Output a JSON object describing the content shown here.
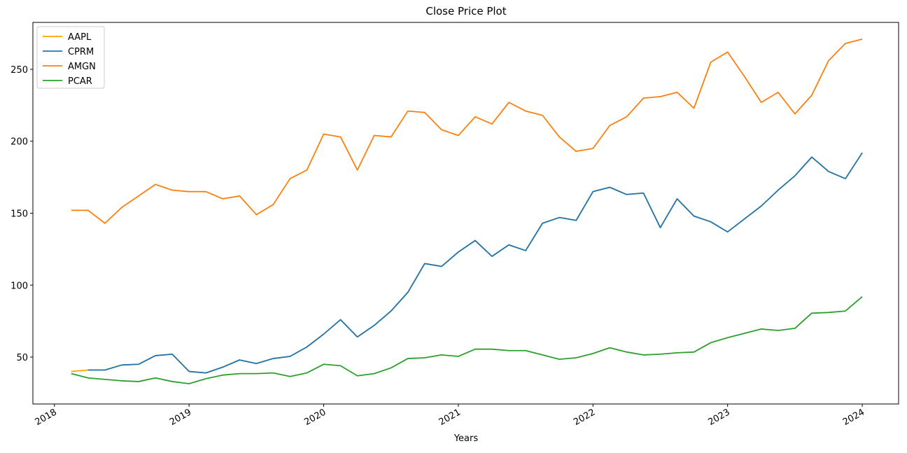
{
  "chart_data": {
    "type": "line",
    "title": "Close Price Plot",
    "x_label": "Years",
    "x": [
      2018.125,
      2018.25,
      2018.375,
      2018.5,
      2018.625,
      2018.75,
      2018.875,
      2019.0,
      2019.125,
      2019.25,
      2019.375,
      2019.5,
      2019.625,
      2019.75,
      2019.875,
      2020.0,
      2020.125,
      2020.25,
      2020.375,
      2020.5,
      2020.625,
      2020.75,
      2020.875,
      2021.0,
      2021.125,
      2021.25,
      2021.375,
      2021.5,
      2021.625,
      2021.75,
      2021.875,
      2022.0,
      2022.125,
      2022.25,
      2022.375,
      2022.5,
      2022.625,
      2022.75,
      2022.875,
      2023.0,
      2023.125,
      2023.25,
      2023.375,
      2023.5,
      2023.625,
      2023.75,
      2023.875,
      2024.0
    ],
    "series": [
      {
        "name": "AAPL",
        "color": "#ffa500",
        "values": [
          40,
          41,
          41,
          44.5,
          45,
          51,
          52,
          40,
          39,
          43,
          48,
          45.5,
          49,
          50.5,
          57,
          66,
          76,
          64,
          72,
          82,
          95,
          115,
          113,
          123,
          131,
          120,
          128,
          124,
          143,
          147,
          145,
          165,
          168,
          163,
          164,
          140,
          160,
          148,
          144,
          137,
          146,
          155,
          166,
          176,
          189,
          179,
          174,
          192
        ]
      },
      {
        "name": "CPRM",
        "color": "#1f77b4",
        "values": [
          null,
          41,
          41,
          44.5,
          45,
          51,
          52,
          40,
          39,
          43,
          48,
          45.5,
          49,
          50.5,
          57,
          66,
          76,
          64,
          72,
          82,
          95,
          115,
          113,
          123,
          131,
          120,
          128,
          124,
          143,
          147,
          145,
          165,
          168,
          163,
          164,
          140,
          160,
          148,
          144,
          137,
          146,
          155,
          166,
          176,
          189,
          179,
          174,
          192
        ]
      },
      {
        "name": "AMGN",
        "color": "#ff7f0e",
        "values": [
          152,
          152,
          143,
          154,
          162,
          170,
          166,
          165,
          165,
          160,
          162,
          149,
          156,
          174,
          180,
          205,
          203,
          180,
          204,
          203,
          221,
          220,
          208,
          204,
          217,
          212,
          227,
          221,
          218,
          203,
          193,
          195,
          211,
          217,
          230,
          231,
          234,
          223,
          255,
          262,
          245,
          227,
          234,
          219,
          232,
          256,
          268,
          271
        ]
      },
      {
        "name": "PCAR",
        "color": "#2ca02c",
        "values": [
          38.5,
          35.5,
          34.5,
          33.5,
          33,
          35.5,
          33,
          31.5,
          35,
          37.5,
          38.5,
          38.5,
          39,
          36.5,
          39,
          45,
          44,
          37,
          38.5,
          42.5,
          49,
          49.5,
          51.5,
          50.5,
          55.5,
          55.5,
          54.5,
          54.5,
          51.5,
          48.5,
          49.5,
          52.5,
          56.5,
          53.5,
          51.5,
          52,
          53,
          53.5,
          60,
          63.5,
          66.5,
          69.5,
          68.5,
          70,
          80.5,
          81,
          82,
          92
        ]
      }
    ],
    "xlim": [
      2017.84,
      2024.27
    ],
    "xticks": [
      2018,
      2019,
      2020,
      2021,
      2022,
      2023,
      2024
    ],
    "ylim": [
      17.4,
      282.6
    ],
    "yticks": [
      50,
      100,
      150,
      200,
      250
    ],
    "legend": "upper left",
    "grid": false
  }
}
